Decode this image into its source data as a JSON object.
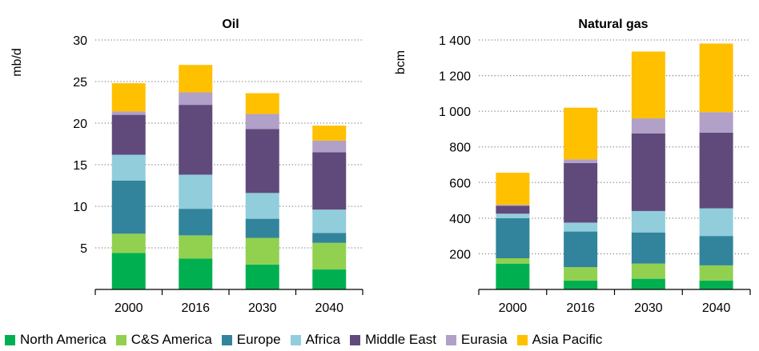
{
  "colors": {
    "North America": "#00b050",
    "C&S America": "#92d050",
    "Europe": "#31849b",
    "Africa": "#92cddc",
    "Middle East": "#604a7b",
    "Eurasia": "#b1a0c7",
    "Asia Pacific": "#ffc000"
  },
  "legend": [
    "North America",
    "C&S America",
    "Europe",
    "Africa",
    "Middle East",
    "Eurasia",
    "Asia Pacific"
  ],
  "chart_data": [
    {
      "type": "bar",
      "stacked": true,
      "title": "Oil",
      "ylabel": "mb/d",
      "ylim": [
        0,
        30
      ],
      "yticks": [
        5,
        10,
        15,
        20,
        25,
        30
      ],
      "ytick_labels": [
        "5",
        "10",
        "15",
        "20",
        "25",
        "30"
      ],
      "categories": [
        "2000",
        "2016",
        "2030",
        "2040"
      ],
      "series": [
        {
          "name": "North America",
          "values": [
            4.4,
            3.7,
            3.0,
            2.4
          ]
        },
        {
          "name": "C&S America",
          "values": [
            2.3,
            2.8,
            3.2,
            3.2
          ]
        },
        {
          "name": "Europe",
          "values": [
            6.4,
            3.2,
            2.3,
            1.2
          ]
        },
        {
          "name": "Africa",
          "values": [
            3.1,
            4.1,
            3.1,
            2.8
          ]
        },
        {
          "name": "Middle East",
          "values": [
            4.8,
            8.4,
            7.7,
            6.9
          ]
        },
        {
          "name": "Eurasia",
          "values": [
            0.4,
            1.5,
            1.8,
            1.4
          ]
        },
        {
          "name": "Asia Pacific",
          "values": [
            3.4,
            3.3,
            2.5,
            1.8
          ]
        }
      ]
    },
    {
      "type": "bar",
      "stacked": true,
      "title": "Natural gas",
      "ylabel": "bcm",
      "ylim": [
        0,
        1400
      ],
      "yticks": [
        200,
        400,
        600,
        800,
        1000,
        1200,
        1400
      ],
      "ytick_labels": [
        "200",
        "400",
        "600",
        "800",
        "1 000",
        "1 200",
        "1 400"
      ],
      "categories": [
        "2000",
        "2016",
        "2030",
        "2040"
      ],
      "series": [
        {
          "name": "North America",
          "values": [
            145,
            50,
            60,
            50
          ]
        },
        {
          "name": "C&S America",
          "values": [
            30,
            75,
            85,
            85
          ]
        },
        {
          "name": "Europe",
          "values": [
            225,
            200,
            175,
            165
          ]
        },
        {
          "name": "Africa",
          "values": [
            25,
            50,
            120,
            155
          ]
        },
        {
          "name": "Middle East",
          "values": [
            45,
            335,
            435,
            425
          ]
        },
        {
          "name": "Eurasia",
          "values": [
            5,
            20,
            85,
            115
          ]
        },
        {
          "name": "Asia Pacific",
          "values": [
            180,
            290,
            375,
            385
          ]
        }
      ]
    }
  ]
}
